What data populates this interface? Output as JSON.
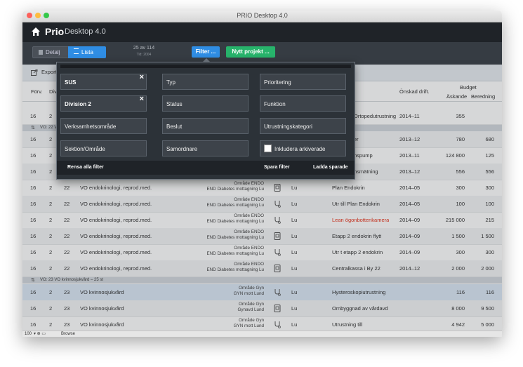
{
  "window": {
    "title": "PRIO Desktop 4.0"
  },
  "app": {
    "logo_bold": "Prio",
    "logo_rest": "Desktop 4.0"
  },
  "toolbar": {
    "view_detail": "Detalj",
    "view_list": "Lista",
    "counter": "25 av 114",
    "counter_sub": "Tid: 2004",
    "filter_button": "Filter ...",
    "new_project_button": "Nytt projekt ..."
  },
  "export": {
    "label": "Export"
  },
  "columns": {
    "forv": "Förv.",
    "div": "Div",
    "onskad": "Önskad drift.",
    "budget": "Budget",
    "askande": "Äskande",
    "beredning": "Beredning"
  },
  "filter": {
    "col1": [
      {
        "label": "SUS",
        "active": true,
        "closable": true
      },
      {
        "label": "Division 2",
        "active": true,
        "closable": true
      },
      {
        "label": "Verksamhetsområde",
        "active": false,
        "closable": false
      },
      {
        "label": "Sektion/Område",
        "active": false,
        "closable": false
      }
    ],
    "col2": [
      "Typ",
      "Status",
      "Beslut",
      "Samordnare"
    ],
    "col3": [
      "Prioritering",
      "Funktion",
      "Utrustningskategori"
    ],
    "include_archived": "Inkludera arkiverade",
    "clear_all": "Rensa alla filter",
    "save": "Spara filter",
    "load": "Ladda sparade"
  },
  "background_rows": [
    {
      "forv": "16",
      "div": "2",
      "proj": "Ortopedutrustning",
      "drift": "2014–11",
      "ask": "355",
      "ber": "",
      "name_color": "#333333"
    },
    {
      "forv": "16",
      "div": "2",
      "proj": "er",
      "drift": "2013–12",
      "ask": "780",
      "ber": "680",
      "name_color": "#333333"
    },
    {
      "forv": "16",
      "div": "2",
      "proj": "nspump",
      "drift": "2013–11",
      "ask": "124 800",
      "ber": "125",
      "name_color": "#333333"
    },
    {
      "forv": "16",
      "div": "2",
      "proj": "nsmätning",
      "drift": "2013–12",
      "ask": "556",
      "ber": "556",
      "name_color": "#333333"
    }
  ],
  "group_22": "VO: 22 VO endokrinologi, reprod.med.",
  "group_23": "VO: 23 VO kvinnosjukvård – 25 st",
  "rows": [
    {
      "forv": "16",
      "div": "2",
      "vo": "22",
      "vo_name": "VO endokrinologi, reprod.med.",
      "omr1": "Område ENDO",
      "omr2": "END Diabetes mottagning Lu",
      "icon": "device-icon",
      "ort": "Lu",
      "proj": "Plan Endokrin",
      "drift": "2014–05",
      "ask": "300",
      "ber": "300",
      "name_color": "#333333"
    },
    {
      "forv": "16",
      "div": "2",
      "vo": "22",
      "vo_name": "VO endokrinologi, reprod.med.",
      "omr1": "Område ENDO",
      "omr2": "END Diabetes mottagning Lu",
      "icon": "stethoscope-icon",
      "ort": "Lu",
      "proj": "Utr till Plan Endokrin",
      "drift": "2014–05",
      "ask": "100",
      "ber": "100",
      "name_color": "#333333"
    },
    {
      "forv": "16",
      "div": "2",
      "vo": "22",
      "vo_name": "VO endokrinologi, reprod.med.",
      "omr1": "Område ENDO",
      "omr2": "END Diabetes mottagning Lu",
      "icon": "stethoscope-icon",
      "ort": "Lu",
      "proj": "Lean ögonbottenkamera",
      "drift": "2014–09",
      "ask": "215 000",
      "ber": "215",
      "name_color": "#e8341c"
    },
    {
      "forv": "16",
      "div": "2",
      "vo": "22",
      "vo_name": "VO endokrinologi, reprod.med.",
      "omr1": "Område ENDO",
      "omr2": "END Diabetes mottagning Lu",
      "icon": "device-icon",
      "ort": "Lu",
      "proj": "Etapp 2 endokrin flytt",
      "drift": "2014–09",
      "ask": "1 500",
      "ber": "1 500",
      "name_color": "#333333"
    },
    {
      "forv": "16",
      "div": "2",
      "vo": "22",
      "vo_name": "VO endokrinologi, reprod.med.",
      "omr1": "Område ENDO",
      "omr2": "END Diabetes mottagning Lu",
      "icon": "stethoscope-icon",
      "ort": "Lu",
      "proj": "Utr t etapp 2 endokrin",
      "drift": "2014–09",
      "ask": "300",
      "ber": "300",
      "name_color": "#333333"
    },
    {
      "forv": "16",
      "div": "2",
      "vo": "22",
      "vo_name": "VO endokrinologi, reprod.med.",
      "omr1": "Område ENDO",
      "omr2": "END Diabetes mottagning Lu",
      "icon": "device-icon",
      "ort": "Lu",
      "proj": "Centralkassa i By 22",
      "drift": "2014–12",
      "ask": "2 000",
      "ber": "2 000",
      "name_color": "#333333"
    }
  ],
  "rows23": [
    {
      "forv": "16",
      "div": "2",
      "vo": "23",
      "vo_name": "VO kvinnosjukvård",
      "omr1": "Område Gyn",
      "omr2": "GYN mott Lund",
      "icon": "stethoscope-icon",
      "ort": "Lu",
      "proj": "Hysteroskopiutrustning",
      "drift": "",
      "ask": "116",
      "ber": "116",
      "name_color": "#333333"
    },
    {
      "forv": "16",
      "div": "2",
      "vo": "23",
      "vo_name": "VO kvinnosjukvård",
      "omr1": "Område Gyn",
      "omr2": "Gynavd Lund",
      "icon": "device-icon",
      "ort": "Lu",
      "proj": "Ombyggnad av vårdavd",
      "drift": "",
      "ask": "8 000",
      "ber": "9 500",
      "name_color": "#333333"
    },
    {
      "forv": "16",
      "div": "2",
      "vo": "23",
      "vo_name": "VO kvinnosjukvård",
      "omr1": "Område Gyn",
      "omr2": "GYN mott Lund",
      "icon": "stethoscope-icon",
      "ort": "Lu",
      "proj": "Utrustning till",
      "drift": "",
      "ask": "4 942",
      "ber": "5 000",
      "name_color": "#333333"
    }
  ],
  "statusbar": {
    "zoom": "100",
    "mode": "Browse"
  }
}
